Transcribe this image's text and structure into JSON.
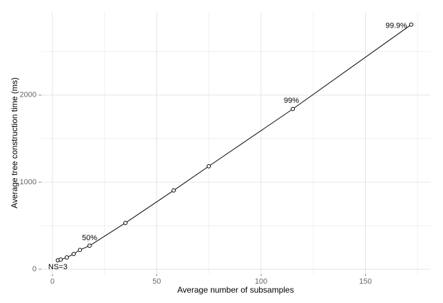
{
  "chart_data": {
    "type": "line",
    "xlabel": "Average number of subsamples",
    "ylabel": "Average tree construction time (ms)",
    "x": [
      2.6,
      4.0,
      6.9,
      10.2,
      13.2,
      17.8,
      35.0,
      58.1,
      74.9,
      115.2,
      171.9
    ],
    "values": [
      103,
      111,
      135,
      175,
      222,
      270,
      532,
      905,
      1183,
      1841,
      2810
    ],
    "point_labels": [
      "NS=3",
      null,
      null,
      null,
      null,
      "50%",
      null,
      null,
      null,
      "99%",
      "99.9%"
    ],
    "color": "#000000",
    "xlim": [
      -5.3,
      181.2
    ],
    "ylim": [
      -55,
      2950
    ],
    "xticks": [
      0,
      50,
      100,
      150
    ],
    "yticks": [
      0,
      1000,
      2000
    ],
    "minor_xticks": [
      25,
      75,
      125,
      175
    ],
    "minor_yticks": [
      500,
      1500,
      2500
    ],
    "grid": true
  }
}
